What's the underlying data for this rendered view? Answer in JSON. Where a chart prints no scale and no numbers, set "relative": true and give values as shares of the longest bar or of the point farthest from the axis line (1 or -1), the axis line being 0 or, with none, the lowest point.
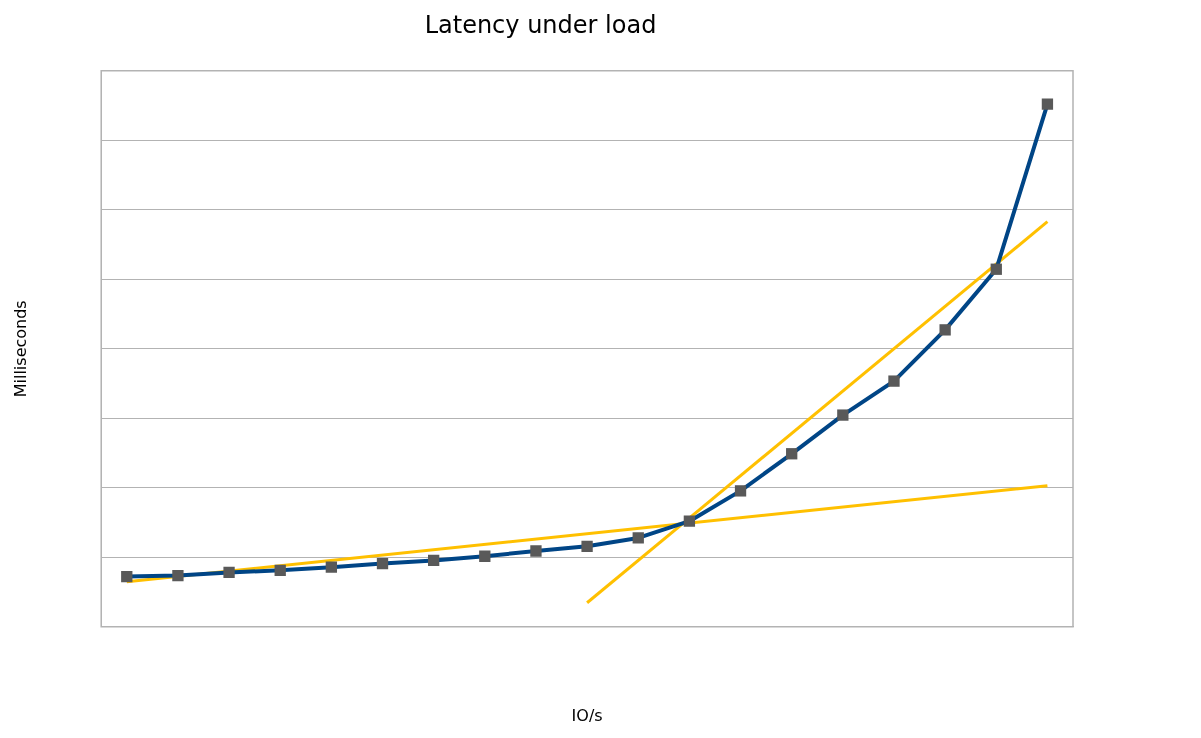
{
  "chart_data": {
    "type": "line",
    "title": "Latency under load",
    "xlabel": "IO/s",
    "ylabel": "Milliseconds",
    "relative": true,
    "grid": "y",
    "legend": false,
    "tick_labels": false,
    "categories": [
      null,
      null,
      null,
      null,
      null,
      null,
      null,
      null,
      null,
      null,
      null,
      null,
      null,
      null,
      null,
      null,
      null,
      null,
      null
    ],
    "series": [
      {
        "color": "#004586",
        "marker": "square",
        "values": [
          0.096,
          0.098,
          0.104,
          0.108,
          0.114,
          0.121,
          0.127,
          0.135,
          0.145,
          0.154,
          0.17,
          0.202,
          0.26,
          0.331,
          0.405,
          0.47,
          0.568,
          0.684,
          1
        ]
      },
      {
        "type": "line",
        "color": "#ffc000",
        "marker": "none",
        "values": [
          0.086,
          null,
          null,
          null,
          null,
          null,
          null,
          null,
          null,
          null,
          null,
          null,
          null,
          null,
          null,
          null,
          null,
          null,
          0.27
        ]
      },
      {
        "type": "line",
        "color": "#ffc000",
        "marker": "none",
        "values": [
          null,
          null,
          null,
          null,
          null,
          null,
          null,
          null,
          null,
          0.046,
          null,
          null,
          null,
          null,
          null,
          null,
          null,
          null,
          0.775
        ]
      }
    ]
  }
}
